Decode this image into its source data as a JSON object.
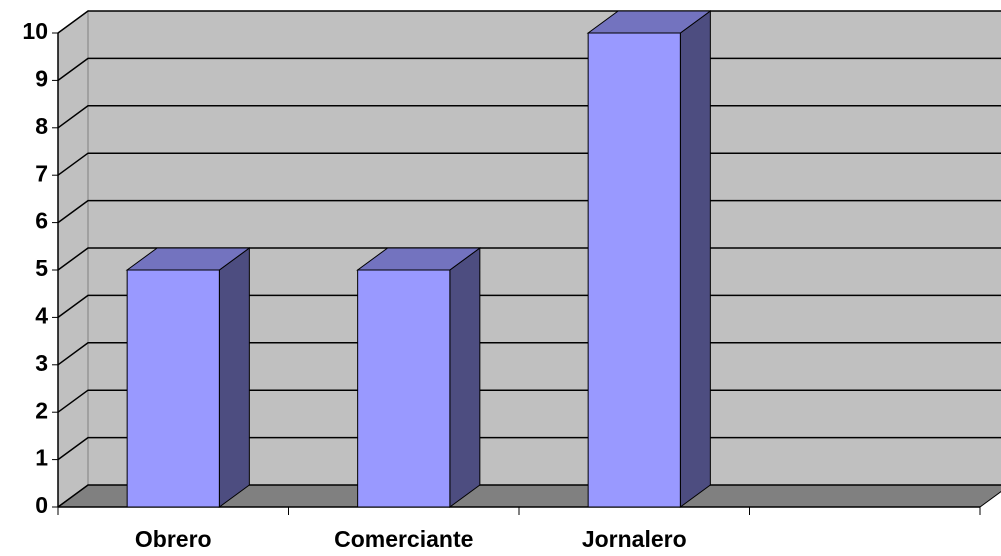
{
  "chart_data": {
    "type": "bar3d",
    "categories": [
      "Obrero",
      "Comerciante",
      "Jornalero",
      null
    ],
    "values": [
      5,
      5,
      10,
      null
    ],
    "color": "#9999ff",
    "ylim": [
      0,
      10
    ],
    "yticks": [
      0,
      1,
      2,
      3,
      4,
      5,
      6,
      7,
      8,
      9,
      10
    ],
    "grid": true
  }
}
